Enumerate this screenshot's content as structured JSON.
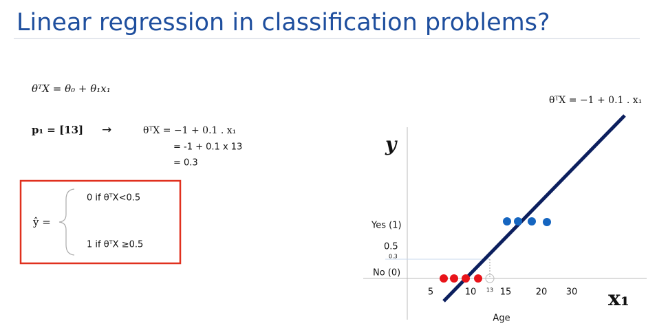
{
  "header": {
    "title": "Linear regression in classification problems?"
  },
  "body": {
    "hypothesis": "θᵀX = θ₀ + θ₁x₁",
    "point": "p₁ = [13]",
    "arrow": "→",
    "steps": [
      "θᵀX = −1 + 0.1 . x₁",
      "= -1 + 0.1 x 13",
      "= 0.3"
    ],
    "rule": {
      "lhs": "ŷ =",
      "cases": [
        "0   if θᵀX<0.5",
        "1   if θᵀX ≥0.5"
      ]
    }
  },
  "figure": {
    "equation": "θᵀX = −1 + 0.1 . x₁",
    "y_axis_label": "y",
    "x_axis_label": "x₁",
    "x_axis_title": "Age",
    "y_labels": [
      "Yes (1)",
      "0.5",
      "0.3",
      "No (0)"
    ],
    "x_labels": [
      "5",
      "10",
      "13",
      "15",
      "20",
      "30"
    ]
  }
}
